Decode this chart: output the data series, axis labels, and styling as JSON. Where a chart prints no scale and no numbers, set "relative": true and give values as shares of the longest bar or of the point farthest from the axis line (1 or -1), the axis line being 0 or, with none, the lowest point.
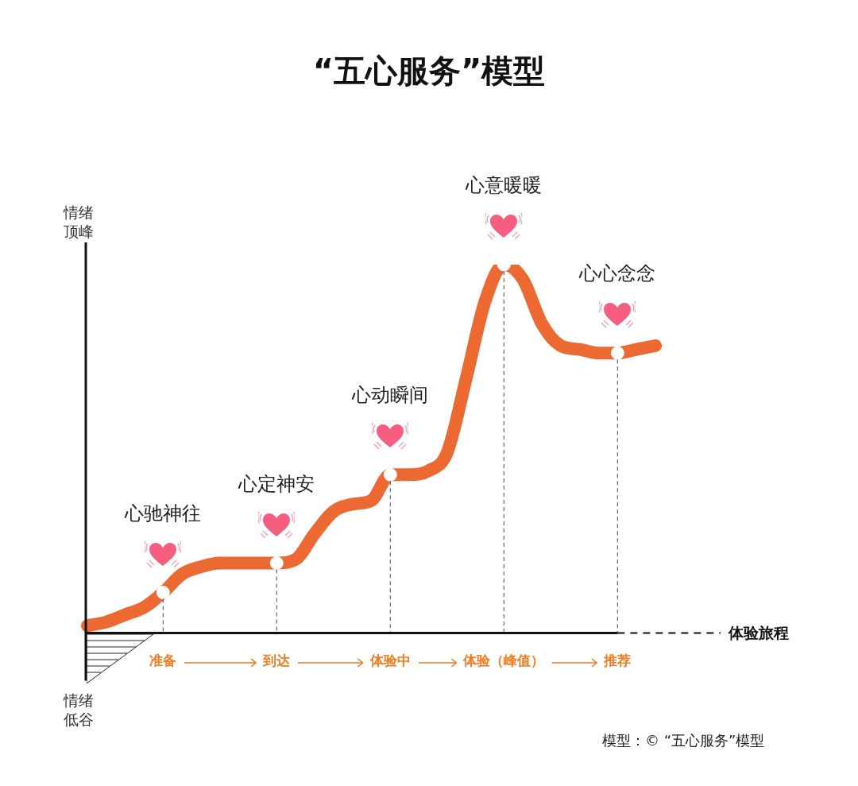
{
  "chart_data": {
    "type": "line",
    "title": "“五心服务”模型",
    "xlabel": "体验旅程",
    "ylabel": "情绪顶峰",
    "relative": true,
    "legend": false,
    "grid": "x",
    "categories": [
      null,
      null,
      null,
      null,
      "准备",
      null,
      null,
      null,
      null,
      null,
      "到达",
      null,
      null,
      null,
      null,
      null,
      "体验中",
      null,
      null,
      null,
      null,
      null,
      "体验（峰值）",
      null,
      null,
      null,
      null,
      null,
      "推荐",
      null,
      null
    ],
    "series": [
      {
        "color": "#ec6a32",
        "marker": "none",
        "values": [
          0.02,
          0.03,
          0.05,
          0.07,
          0.11,
          0.16,
          0.18,
          0.19,
          0.19,
          0.19,
          0.19,
          0.2,
          0.27,
          0.33,
          0.35,
          0.36,
          0.43,
          0.43,
          0.44,
          0.49,
          0.69,
          0.9,
          1.0,
          0.96,
          0.84,
          0.78,
          0.77,
          0.76,
          0.76,
          0.77,
          0.78
        ]
      },
      {
        "type": "scatter",
        "color": "#ffffff",
        "marker": "circle",
        "x": [
          "准备",
          "到达",
          "体验中",
          "体验（峰值）",
          "推荐"
        ],
        "values": [
          0.11,
          0.19,
          0.43,
          1.0,
          0.76
        ]
      }
    ],
    "annotations": [
      "心驰神往",
      "心定神安",
      "心动瞬间",
      "心意暖暖",
      "心心念念",
      "情绪低谷",
      "模型：© “五心服务”模型"
    ]
  }
}
